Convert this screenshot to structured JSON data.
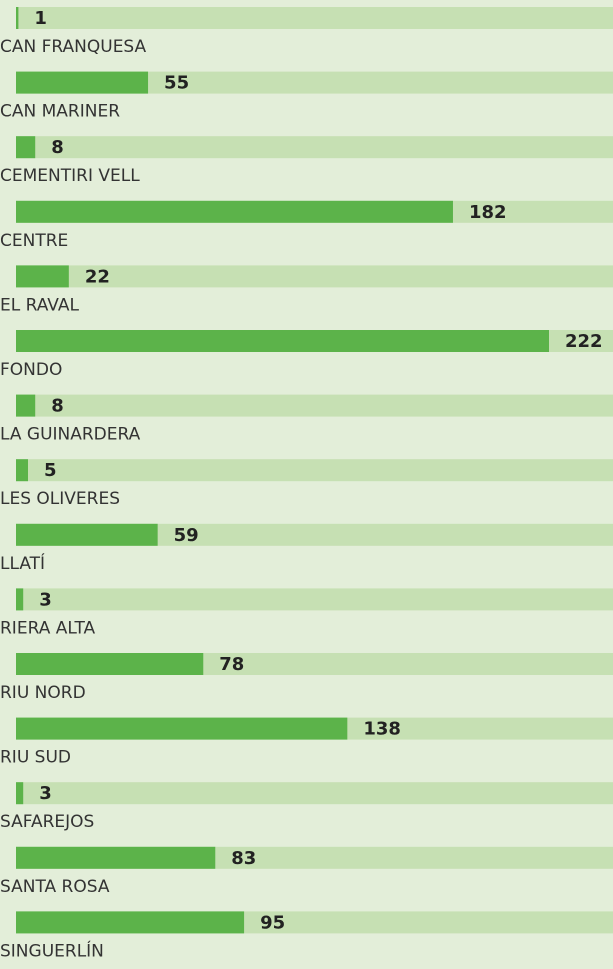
{
  "chart_data": {
    "type": "bar",
    "orientation": "horizontal",
    "categories": [
      "CAN FRANQUESA",
      "CAN MARINER",
      "CEMENTIRI VELL",
      "CENTRE",
      "EL RAVAL",
      "FONDO",
      "LA GUINARDERA",
      "LES OLIVERES",
      "LLATÍ",
      "RIERA ALTA",
      "RIU NORD",
      "RIU SUD",
      "SAFAREJOS",
      "SANTA ROSA",
      "SINGUERLÍN"
    ],
    "values": [
      1,
      55,
      8,
      182,
      22,
      222,
      8,
      5,
      59,
      3,
      78,
      138,
      3,
      83,
      95
    ],
    "color": "#5cb34a",
    "track_color": "#c6e0b3"
  }
}
